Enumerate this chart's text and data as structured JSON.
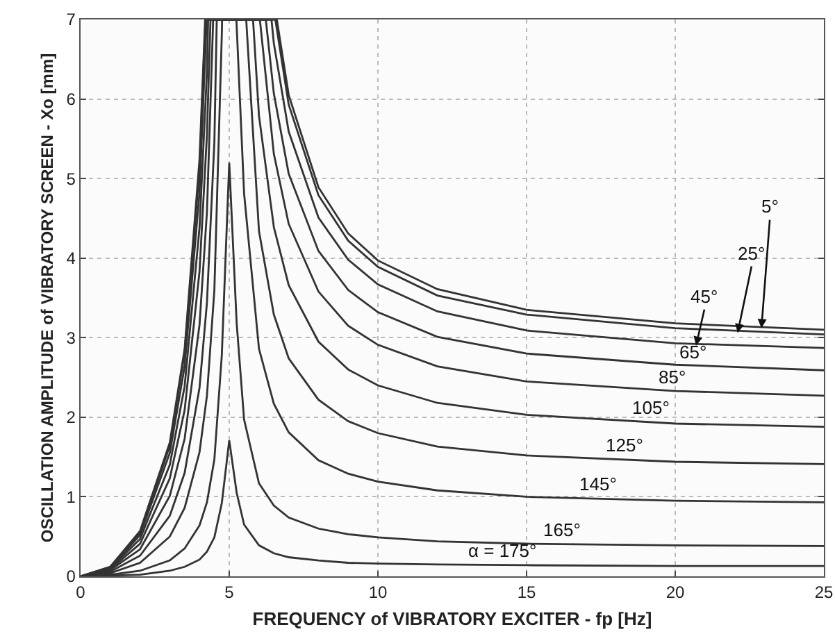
{
  "chart_data": {
    "type": "line",
    "xlabel": "FREQUENCY of VIBRATORY EXCITER - fp [Hz]",
    "ylabel": "OSCILLATION AMPLITUDE of VIBRATORY SCREEN - Xo [mm]",
    "xlim": [
      0,
      25
    ],
    "ylim": [
      0,
      7
    ],
    "xticks": [
      0,
      5,
      10,
      15,
      20,
      25
    ],
    "yticks": [
      0,
      1,
      2,
      3,
      4,
      5,
      6,
      7
    ],
    "grid": true,
    "marker": "none",
    "line_style": "solid",
    "series": [
      {
        "color": "#333333",
        "x": [
          0,
          1,
          2,
          3,
          3.5,
          4,
          4.19,
          6.6,
          7,
          8,
          9,
          10,
          12,
          15,
          20,
          25
        ],
        "values": [
          0,
          0.12,
          0.57,
          1.68,
          2.86,
          5.24,
          7,
          7,
          6.05,
          4.89,
          4.31,
          3.97,
          3.61,
          3.35,
          3.18,
          3.1
        ]
      },
      {
        "color": "#333333",
        "x": [
          0,
          1,
          2,
          3,
          3.5,
          4,
          4.2,
          6.55,
          7,
          8,
          9,
          10,
          12,
          15,
          20,
          25
        ],
        "values": [
          0,
          0.12,
          0.55,
          1.64,
          2.81,
          5.13,
          7,
          7,
          5.93,
          4.79,
          4.22,
          3.89,
          3.53,
          3.29,
          3.12,
          3.04
        ]
      },
      {
        "color": "#333333",
        "x": [
          0,
          1,
          2,
          3,
          3.5,
          4,
          4.24,
          6.42,
          6.5,
          7,
          8,
          9,
          10,
          12,
          15,
          20,
          25
        ],
        "values": [
          0,
          0.11,
          0.52,
          1.55,
          2.64,
          4.83,
          7,
          7,
          6.7,
          5.59,
          4.51,
          3.98,
          3.67,
          3.33,
          3.09,
          2.93,
          2.87
        ]
      },
      {
        "color": "#333333",
        "x": [
          0,
          1,
          2,
          3,
          3.5,
          4,
          4.25,
          4.29,
          6.23,
          6.5,
          7,
          8,
          9,
          10,
          12,
          15,
          20,
          25
        ],
        "values": [
          0,
          0.1,
          0.47,
          1.4,
          2.39,
          4.38,
          6.34,
          7,
          7,
          6.07,
          5.06,
          4.09,
          3.6,
          3.32,
          3.01,
          2.8,
          2.66,
          2.59
        ]
      },
      {
        "color": "#333333",
        "x": [
          0,
          1,
          2,
          3,
          3.5,
          4,
          4.25,
          4.37,
          6.03,
          6.5,
          7,
          8,
          9,
          10,
          12,
          15,
          20,
          25
        ],
        "values": [
          0,
          0.09,
          0.41,
          1.23,
          2.09,
          3.83,
          5.55,
          7,
          7,
          5.31,
          4.43,
          3.58,
          3.15,
          2.91,
          2.64,
          2.45,
          2.33,
          2.27
        ]
      },
      {
        "color": "#333333",
        "x": [
          0,
          1,
          2,
          3,
          3.5,
          4,
          4.25,
          4.46,
          5.8,
          6,
          6.5,
          7,
          8,
          9,
          10,
          12,
          15,
          20,
          25
        ],
        "values": [
          0,
          0.08,
          0.34,
          1.01,
          1.73,
          3.16,
          4.58,
          7,
          7,
          5.79,
          4.39,
          3.66,
          2.95,
          2.6,
          2.4,
          2.18,
          2.03,
          1.92,
          1.88
        ]
      },
      {
        "color": "#333333",
        "x": [
          0,
          1,
          2,
          3,
          3.5,
          4,
          4.25,
          4.5,
          4.58,
          5.57,
          6,
          6.5,
          7,
          8,
          9,
          10,
          12,
          15,
          20,
          25
        ],
        "values": [
          0,
          0.06,
          0.26,
          0.76,
          1.3,
          2.37,
          3.44,
          5.46,
          7,
          7,
          4.34,
          3.29,
          2.74,
          2.22,
          1.95,
          1.8,
          1.63,
          1.52,
          1.44,
          1.41
        ]
      },
      {
        "color": "#333333",
        "x": [
          0,
          1,
          2,
          3,
          3.5,
          4,
          4.25,
          4.5,
          4.75,
          4.76,
          5.24,
          5.5,
          6,
          6.5,
          7,
          8,
          9,
          10,
          12,
          15,
          20,
          25
        ],
        "values": [
          0,
          0.04,
          0.17,
          0.5,
          0.86,
          1.56,
          2.27,
          3.6,
          6.81,
          7,
          7,
          4.81,
          2.86,
          2.17,
          1.81,
          1.46,
          1.29,
          1.19,
          1.08,
          1.0,
          0.95,
          0.93
        ]
      },
      {
        "color": "#333333",
        "x": [
          0,
          1,
          2,
          3,
          3.5,
          4,
          4.25,
          4.5,
          4.75,
          5,
          5.25,
          5.5,
          6,
          6.5,
          7,
          8,
          9,
          10,
          12,
          15,
          20,
          25
        ],
        "values": [
          0,
          0.02,
          0.07,
          0.2,
          0.35,
          0.64,
          0.93,
          1.47,
          2.78,
          5.2,
          3.18,
          1.97,
          1.17,
          0.89,
          0.74,
          0.6,
          0.53,
          0.49,
          0.44,
          0.41,
          0.39,
          0.38
        ]
      },
      {
        "color": "#333333",
        "x": [
          0,
          1,
          2,
          3,
          3.5,
          4,
          4.25,
          4.5,
          4.75,
          5,
          5.25,
          5.5,
          6,
          6.5,
          7,
          8,
          9,
          10,
          12,
          15,
          20,
          25
        ],
        "values": [
          0,
          0.01,
          0.02,
          0.07,
          0.12,
          0.21,
          0.31,
          0.49,
          0.92,
          1.71,
          1.05,
          0.65,
          0.39,
          0.29,
          0.24,
          0.2,
          0.17,
          0.16,
          0.15,
          0.14,
          0.13,
          0.13
        ]
      }
    ],
    "annotations": [
      {
        "text": "5°",
        "x": 22.9,
        "y": 3.12
      },
      {
        "text": "25°",
        "x": 22.1,
        "y": 3.06
      },
      {
        "text": "45°",
        "x": 20.7,
        "y": 2.9
      },
      {
        "text": "65°",
        "x": 20.6,
        "y": 2.64
      },
      {
        "text": "85°",
        "x": 19.9,
        "y": 2.33
      },
      {
        "text": "105°",
        "x": 19.2,
        "y": 1.94
      },
      {
        "text": "125°",
        "x": 18.3,
        "y": 1.46
      },
      {
        "text": "145°",
        "x": 17.4,
        "y": 0.97
      },
      {
        "text": "165°",
        "x": 16.2,
        "y": 0.4
      },
      {
        "text": "α = 175°",
        "x": 14.2,
        "y": 0.14
      }
    ]
  }
}
